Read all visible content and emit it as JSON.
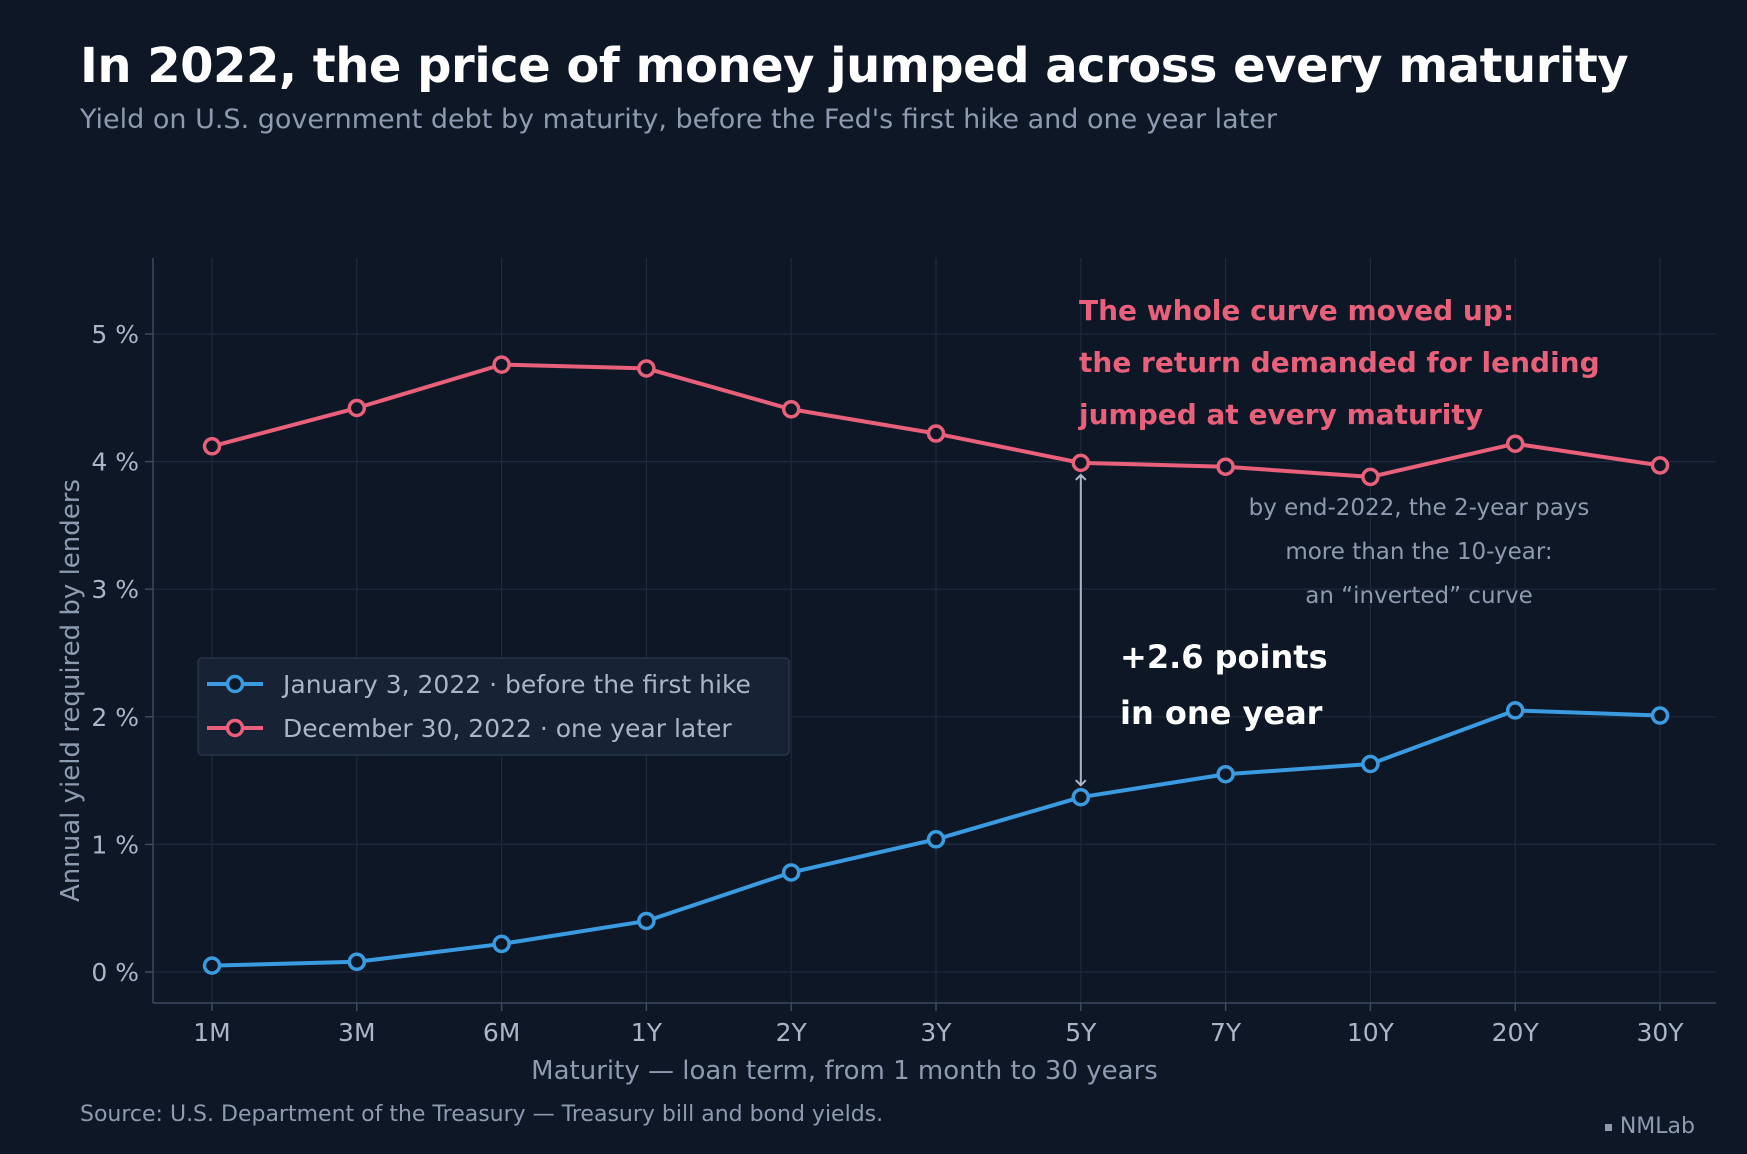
{
  "header": {
    "title": "In 2022, the price of money jumped across every maturity",
    "subtitle": "Yield on U.S. government debt by maturity, before the Fed's first hike and one year later"
  },
  "footer": {
    "source": "Source: U.S. Department of the Treasury — Treasury bill and bond yields.",
    "brand": "NMLab"
  },
  "chart_data": {
    "type": "line",
    "title": "In 2022, the price of money jumped across every maturity",
    "subtitle": "Yield on U.S. government debt by maturity, before the Fed's first hike and one year later",
    "xlabel": "Maturity  —  loan term, from 1 month to 30 years",
    "ylabel": "Annual yield required by lenders",
    "categories": [
      "1M",
      "3M",
      "6M",
      "1Y",
      "2Y",
      "3Y",
      "5Y",
      "7Y",
      "10Y",
      "20Y",
      "30Y"
    ],
    "yticks": [
      0,
      1,
      2,
      3,
      4,
      5
    ],
    "ytick_labels": [
      "0 %",
      "1 %",
      "2 %",
      "3 %",
      "4 %",
      "5 %"
    ],
    "ylim": [
      -0.25,
      5.6
    ],
    "grid": true,
    "legend_position": "middle-left",
    "series": [
      {
        "name": "January 3, 2022",
        "note": "before the first hike",
        "color": "#3b9be0",
        "values": [
          0.05,
          0.08,
          0.22,
          0.4,
          0.78,
          1.04,
          1.37,
          1.55,
          1.63,
          2.05,
          2.01
        ]
      },
      {
        "name": "December 30, 2022",
        "note": "one year later",
        "color": "#e8607a",
        "values": [
          4.12,
          4.42,
          4.76,
          4.73,
          4.41,
          4.22,
          3.99,
          3.96,
          3.88,
          4.14,
          3.97
        ]
      }
    ],
    "annotations": {
      "headline": [
        "The whole curve moved up:",
        "the return demanded for lending",
        "jumped at every maturity"
      ],
      "note": [
        "by end-2022, the 2-year pays",
        "more than the 10-year:",
        "an “inverted” curve"
      ],
      "delta": [
        "+2.6 points",
        "in one year"
      ],
      "arrow_category": "5Y"
    }
  }
}
